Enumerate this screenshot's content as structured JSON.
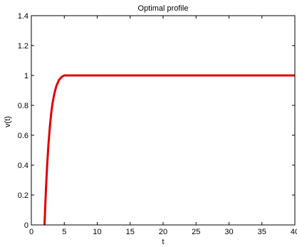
{
  "chart_data": {
    "type": "line",
    "title": "Optimal profile",
    "xlabel": "t",
    "ylabel": "v(t)",
    "xlim": [
      0,
      40
    ],
    "ylim": [
      0,
      1.4
    ],
    "xticks": [
      "0",
      "5",
      "10",
      "15",
      "20",
      "25",
      "30",
      "35",
      "40"
    ],
    "yticks": [
      "0",
      "0.2",
      "0.4",
      "0.6",
      "0.8",
      "1",
      "1.2",
      "1.4"
    ],
    "grid": false,
    "series": [
      {
        "color": "#e00000",
        "x": [
          2.0,
          2.2,
          2.4,
          2.6,
          2.8,
          3.0,
          3.2,
          3.5,
          3.8,
          4.2,
          4.6,
          5.0,
          5.5,
          6.0,
          8.0,
          40.0
        ],
        "y": [
          0.0,
          0.22,
          0.4,
          0.54,
          0.65,
          0.74,
          0.81,
          0.88,
          0.93,
          0.97,
          0.99,
          1.0,
          1.0,
          1.0,
          1.0,
          1.0
        ]
      }
    ]
  }
}
